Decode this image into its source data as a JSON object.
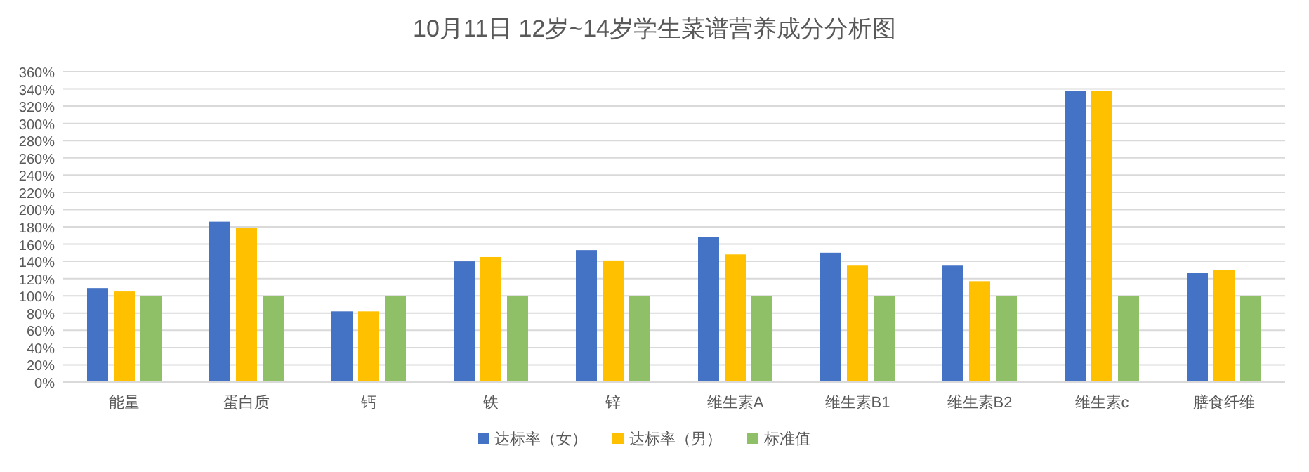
{
  "chart_data": {
    "type": "bar",
    "title": "10月11日 12岁~14岁学生菜谱营养成分分析图",
    "categories": [
      "能量",
      "蛋白质",
      "钙",
      "铁",
      "锌",
      "维生素A",
      "维生素B1",
      "维生素B2",
      "维生素c",
      "膳食纤维"
    ],
    "series": [
      {
        "name": "达标率（女）",
        "color": "#4472c4",
        "values": [
          109,
          186,
          82,
          140,
          153,
          168,
          150,
          135,
          338,
          127
        ]
      },
      {
        "name": "达标率（男）",
        "color": "#ffc000",
        "values": [
          105,
          179,
          82,
          145,
          141,
          148,
          135,
          117,
          338,
          130
        ]
      },
      {
        "name": "标准值",
        "color": "#8fc068",
        "values": [
          100,
          100,
          100,
          100,
          100,
          100,
          100,
          100,
          100,
          100
        ]
      }
    ],
    "ylim": [
      0,
      360
    ],
    "yticks": [
      {
        "value": 0,
        "label": "0%"
      },
      {
        "value": 20,
        "label": "20%"
      },
      {
        "value": 40,
        "label": "40%"
      },
      {
        "value": 60,
        "label": "60%"
      },
      {
        "value": 80,
        "label": "80%"
      },
      {
        "value": 100,
        "label": "100%"
      },
      {
        "value": 120,
        "label": "120%"
      },
      {
        "value": 140,
        "label": "140%"
      },
      {
        "value": 160,
        "label": "160%"
      },
      {
        "value": 180,
        "label": "180%"
      },
      {
        "value": 200,
        "label": "200%"
      },
      {
        "value": 220,
        "label": "220%"
      },
      {
        "value": 240,
        "label": "240%"
      },
      {
        "value": 260,
        "label": "260%"
      },
      {
        "value": 280,
        "label": "280%"
      },
      {
        "value": 300,
        "label": "300%"
      },
      {
        "value": 320,
        "label": "320%"
      },
      {
        "value": 340,
        "label": "340%"
      },
      {
        "value": 360,
        "label": "360%"
      }
    ],
    "grid": "y",
    "legend": "bottom"
  }
}
